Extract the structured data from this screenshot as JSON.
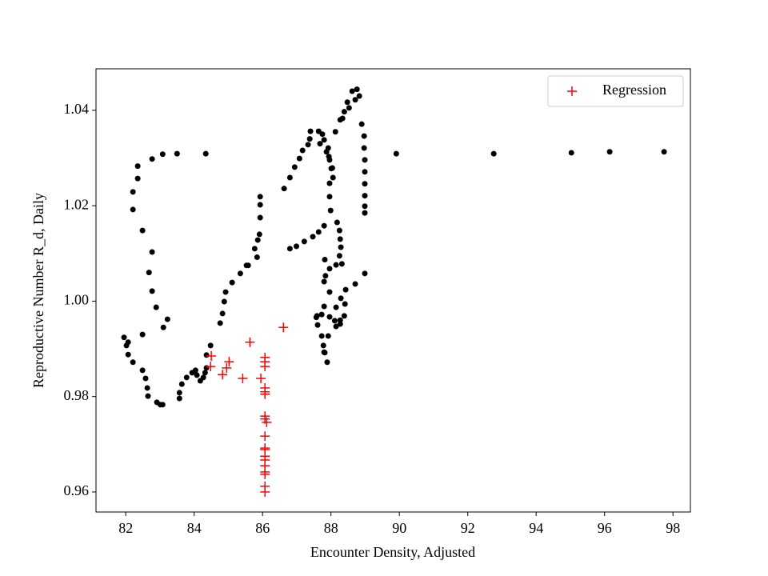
{
  "chart_data": {
    "type": "scatter",
    "xlabel": "Encounter Density, Adjusted",
    "ylabel": "Reproductive Number R_d, Daily",
    "xlim": [
      81.13,
      98.51
    ],
    "ylim": [
      0.9558,
      1.0487
    ],
    "xticks": [
      82,
      84,
      86,
      88,
      90,
      92,
      94,
      96,
      98
    ],
    "yticks": [
      0.96,
      0.98,
      {
        "value": 1,
        "label": "1.00"
      },
      1.02,
      1.04
    ],
    "legend": "upper right",
    "series": [
      {
        "color": "#000000",
        "marker": "o",
        "x": [
          81.95,
          82.07,
          82.02,
          82.07,
          82.21,
          82.49,
          82.58,
          82.63,
          82.65,
          82.91,
          83.01,
          83.08,
          83.1,
          83.22,
          82.49,
          82.89,
          82.77,
          82.68,
          82.77,
          82.49,
          82.21,
          82.21,
          82.35,
          82.35,
          82.77,
          83.08,
          83.5,
          84.34,
          89.91,
          92.76,
          95.03,
          96.15,
          97.74,
          83.57,
          83.57,
          83.64,
          83.78,
          83.94,
          84.04,
          84.08,
          84.18,
          84.27,
          84.32,
          84.36,
          84.36,
          84.48,
          84.76,
          84.83,
          84.88,
          84.92,
          85.11,
          85.35,
          85.58,
          85.77,
          85.86,
          85.91,
          85.93,
          85.93,
          85.93,
          85.84,
          85.53,
          86.63,
          86.8,
          86.94,
          87.08,
          87.17,
          87.33,
          87.38,
          87.4,
          87.64,
          87.75,
          87.8,
          87.92,
          87.94,
          88.01,
          88.06,
          87.96,
          87.96,
          87.99,
          87.8,
          87.64,
          87.47,
          87.22,
          86.99,
          86.8,
          88.18,
          88.25,
          88.27,
          88.29,
          88.25,
          88.15,
          87.96,
          87.84,
          87.8,
          87.96,
          87.8,
          87.57,
          87.61,
          87.73,
          87.78,
          87.82,
          87.89,
          88.15,
          88.27,
          88.39,
          88.41,
          88.43,
          88.29,
          88.15,
          88.71,
          88.99,
          88.32,
          87.82,
          87.59,
          87.73,
          87.96,
          88.11,
          88.27,
          87.92,
          87.8,
          87.68,
          87.87,
          87.96,
          88.04,
          88.13,
          88.27,
          88.39,
          88.48,
          88.62,
          88.76,
          88.83,
          88.9,
          88.97,
          88.97,
          88.99,
          88.99,
          88.99,
          88.99,
          88.99,
          88.99,
          88.71,
          88.53,
          88.34
        ],
        "values": [
          0.9924,
          0.9914,
          0.9907,
          0.9888,
          0.9872,
          0.9855,
          0.9838,
          0.9818,
          0.9801,
          0.9788,
          0.9783,
          0.9783,
          0.9945,
          0.9962,
          0.993,
          0.9987,
          1.0021,
          1.006,
          1.0103,
          1.0148,
          1.0192,
          1.0229,
          1.0257,
          1.0283,
          1.0298,
          1.0308,
          1.0309,
          1.0309,
          1.0309,
          1.0309,
          1.0311,
          1.0313,
          1.0313,
          0.9796,
          0.9808,
          0.9826,
          0.984,
          0.985,
          0.9855,
          0.9845,
          0.9833,
          0.984,
          0.985,
          0.986,
          0.9887,
          0.9907,
          0.9954,
          0.9974,
          0.9999,
          1.0019,
          1.0039,
          1.0058,
          1.0075,
          1.011,
          1.0128,
          1.014,
          1.0175,
          1.0202,
          1.0219,
          1.0092,
          1.0075,
          1.0236,
          1.0259,
          1.0281,
          1.0299,
          1.0316,
          1.0328,
          1.034,
          1.0356,
          1.0356,
          1.035,
          1.0338,
          1.0321,
          1.0303,
          1.0278,
          1.0259,
          1.0247,
          1.0219,
          1.019,
          1.0158,
          1.0145,
          1.0135,
          1.0125,
          1.0115,
          1.011,
          1.0165,
          1.0148,
          1.013,
          1.0113,
          1.0095,
          1.0076,
          1.0068,
          1.0053,
          1.0041,
          1.0019,
          0.9989,
          0.9966,
          0.995,
          0.9927,
          0.9907,
          0.9892,
          0.9872,
          0.9947,
          0.996,
          0.9969,
          0.9994,
          1.0024,
          1.0006,
          0.9987,
          1.0036,
          1.0058,
          1.0078,
          1.0087,
          0.9969,
          0.9972,
          0.9967,
          0.9959,
          0.9952,
          0.9927,
          0.9893,
          1.033,
          1.0313,
          1.0296,
          1.0279,
          1.0355,
          1.038,
          1.0397,
          1.0417,
          1.044,
          1.0444,
          1.043,
          1.0371,
          1.0346,
          1.0321,
          1.0296,
          1.0271,
          1.0246,
          1.0221,
          1.0199,
          1.0185,
          1.0422,
          1.0405,
          1.0383
        ]
      },
      {
        "name": "Regression",
        "color": "#ff0000",
        "marker": "+",
        "x": [
          84.5,
          84.48,
          84.83,
          84.95,
          85.02,
          85.42,
          85.63,
          86.61,
          85.95,
          86.07,
          86.07,
          86.07,
          86.07,
          86.07,
          86.07,
          86.07,
          86.07,
          86.12,
          86.07,
          86.07,
          86.07,
          86.07,
          86.07,
          86.07,
          86.07,
          86.07,
          86.07,
          86.07
        ],
        "values": [
          0.9885,
          0.9863,
          0.9846,
          0.986,
          0.9873,
          0.9838,
          0.9914,
          0.9945,
          0.9838,
          0.9882,
          0.9873,
          0.9863,
          0.9818,
          0.981,
          0.9805,
          0.9759,
          0.9753,
          0.9746,
          0.9717,
          0.9692,
          0.9689,
          0.9675,
          0.9667,
          0.9655,
          0.9642,
          0.9637,
          0.9612,
          0.96
        ]
      }
    ]
  }
}
